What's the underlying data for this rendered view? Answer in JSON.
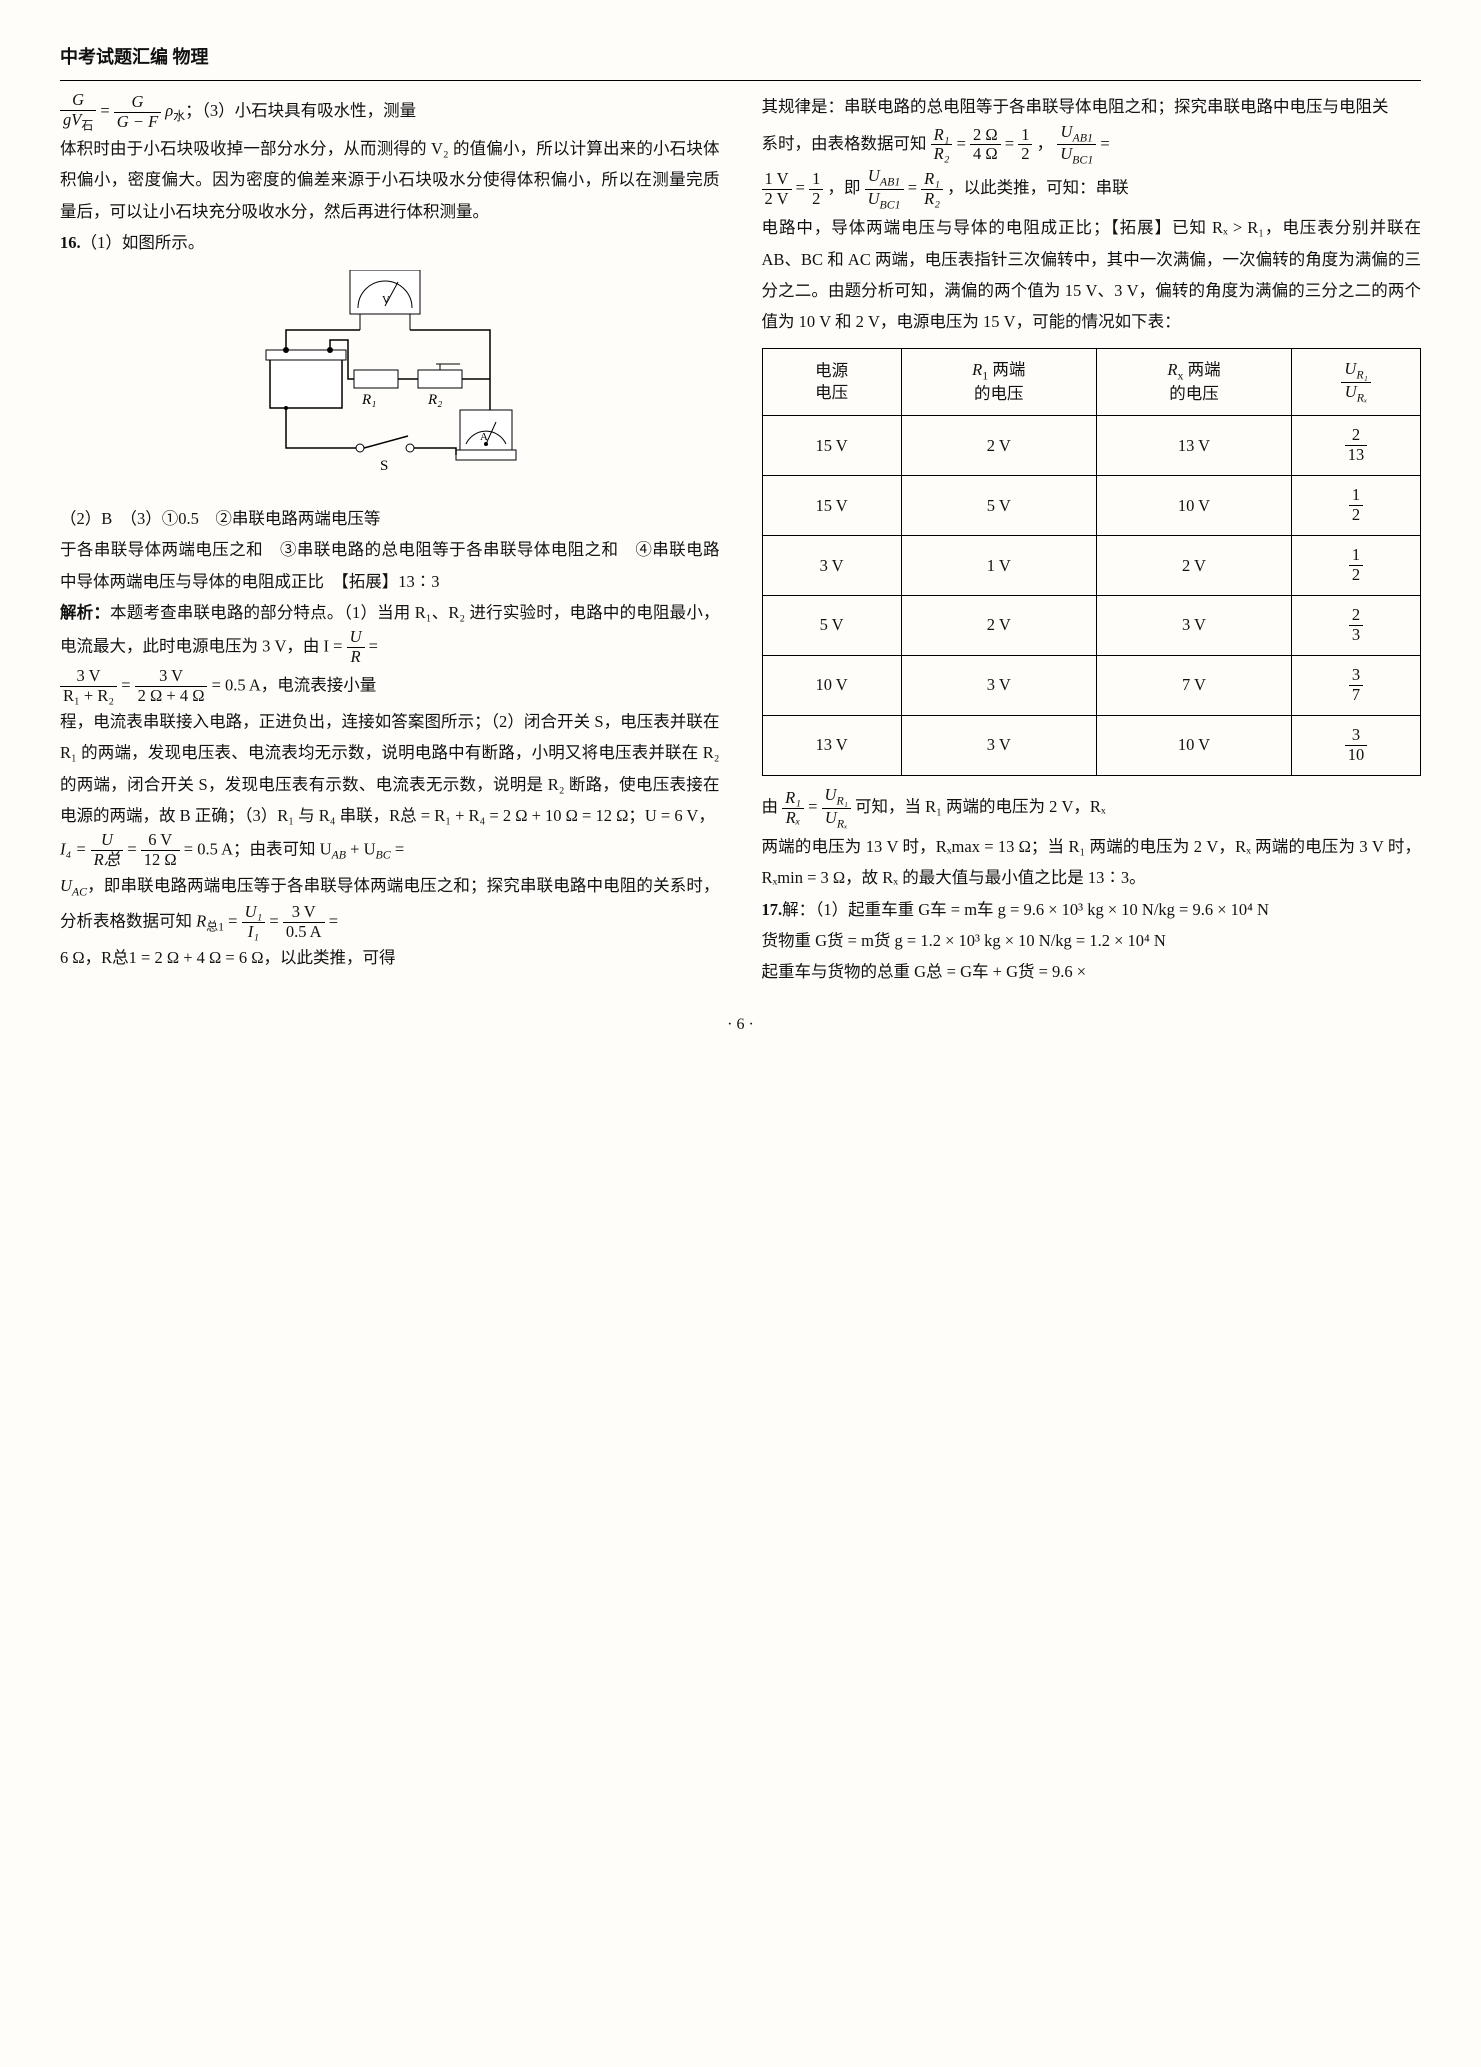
{
  "header": "中考试题汇编  物理",
  "page_number": "· 6 ·",
  "left": {
    "eq_line": {
      "a_num": "G",
      "a_den": "gV",
      "a_den_sub": "石",
      "b_num": "G",
      "b_den": "G − F",
      "rho": "ρ",
      "rho_sub": "水",
      "tail": "；（3）小石块具有吸水性，测量"
    },
    "p1": "体积时由于小石块吸收掉一部分水分，从而测得的 V₂ 的值偏小，所以计算出来的小石块体积偏小，密度偏大。因为密度的偏差来源于小石块吸水分使得体积偏小，所以在测量完质量后，可以让小石块充分吸收水分，然后再进行体积测量。",
    "item16_label": "16.",
    "item16_1": "（1）如图所示。",
    "diagram": {
      "r1": "R₁",
      "r2": "R₂",
      "s": "S",
      "a": "A",
      "v": "V"
    },
    "p2b_line1": "（2）B　（3）①0.5　②串联电路两端电压等",
    "p2b": "于各串联导体两端电压之和　③串联电路的总电阻等于各串联导体电阻之和　④串联电路中导体两端电压与导体的电阻成正比　【拓展】13∶3",
    "analy_label": "解析：",
    "analy1": "本题考查串联电路的部分特点。（1）当用 R₁、R₂ 进行实验时，电路中的电阻最小，电流最大，此时电源电压为 3 V，由 I = ",
    "f_u": "U",
    "f_r": "R",
    "eq2_num": "3 V",
    "eq2_den": "R₁ + R₂",
    "eq2b_num": "3 V",
    "eq2b_den": "2 Ω + 4 Ω",
    "eq2_val": " = 0.5 A，电流表接小量",
    "analy2": "程，电流表串联接入电路，正进负出，连接如答案图所示；（2）闭合开关 S，电压表并联在 R₁ 的两端，发现电压表、电流表均无示数，说明电路中有断路，小明又将电压表并联在 R₂ 的两端，闭合开关 S，发现电压表有示数、电流表无示数，说明是 R₂ 断路，使电压表接在电源的两端，故 B 正确；（3）R₁ 与 R₄ 串联，R总 = R₁ + R₄ = 2 Ω + 10 Ω = 12 Ω；U = 6 V，",
    "i4": "I₄ = ",
    "i4_num": "U",
    "i4_den": "R总",
    "i4b_num": "6 V",
    "i4b_den": "12 Ω",
    "i4_tail": " = 0.5 A；由表可知 U",
    "ab": "AB",
    "plus": " + U",
    "bc": "BC",
    "eq": " =",
    "uac": "U",
    "uac_sub": "AC",
    "analy3": "，即串联电路两端电压等于各串联导体两端电压之和；探究串联电路中电阻的关系时，分析表格数据可知 ",
    "rz1": "R",
    "rz1_sub": "总1",
    "rz1_eq": " = ",
    "rz1_num": "U₁",
    "rz1_den": "I₁",
    "rz1b_num": "3 V",
    "rz1b_den": "0.5 A",
    "rz1_tail": " =",
    "analy4": "6 Ω，R总1 = 2 Ω + 4 Ω = 6 Ω，以此类推，可得"
  },
  "right": {
    "p1": "其规律是：串联电路的总电阻等于各串联导体电阻之和；探究串联电路中电压与电阻关",
    "p1b": "系时，由表格数据可知 ",
    "f1_num": "R₁",
    "f1_den": "R₂",
    "f1_val": " = ",
    "f2_num": "2 Ω",
    "f2_den": "4 Ω",
    "f2_val": " = ",
    "f3_num": "1",
    "f3_den": "2",
    "f3_tail": "，",
    "f4_num": "U",
    "f4_num_sub": "AB1",
    "f4_den": "U",
    "f4_den_sub": "BC1",
    "f4_tail": " =",
    "p2a_num": "1 V",
    "p2a_den": "2 V",
    "p2a_val": " = ",
    "p2b_num": "1",
    "p2b_den": "2",
    "p2b_tail": "，即 ",
    "p2c_num": "U",
    "p2c_num_sub": "AB1",
    "p2c_den": "U",
    "p2c_den_sub": "BC1",
    "p2c_val": " = ",
    "p2d_num": "R₁",
    "p2d_den": "R₂",
    "p2d_tail": "，以此类推，可知：串联",
    "p2": "电路中，导体两端电压与导体的电阻成正比；【拓展】已知 Rₓ > R₁，电压表分别并联在 AB、BC 和 AC 两端，电压表指针三次偏转中，其中一次满偏，一次偏转的角度为满偏的三分之二。由题分析可知，满偏的两个值为 15 V、3 V，偏转的角度为满偏的三分之二的两个值为 10 V 和 2 V，电源电压为 15 V，可能的情况如下表：",
    "table": {
      "headers": [
        "电源\n电压",
        "R₁ 两端\n的电压",
        "Rₓ 两端\n的电压",
        "|U_R₁_over_U_Rx|"
      ],
      "h4_num": "U",
      "h4_num_sub": "R₁",
      "h4_den": "U",
      "h4_den_sub": "Rₓ",
      "rows": [
        [
          "15 V",
          "2 V",
          "13 V",
          "2",
          "13"
        ],
        [
          "15 V",
          "5 V",
          "10 V",
          "1",
          "2"
        ],
        [
          "3 V",
          "1 V",
          "2 V",
          "1",
          "2"
        ],
        [
          "5 V",
          "2 V",
          "3 V",
          "2",
          "3"
        ],
        [
          "10 V",
          "3 V",
          "7 V",
          "3",
          "7"
        ],
        [
          "13 V",
          "3 V",
          "10 V",
          "3",
          "10"
        ]
      ]
    },
    "p3a": "由 ",
    "p3_num": "R₁",
    "p3_den": "Rₓ",
    "p3_eq": " = ",
    "p3b_num": "U",
    "p3b_num_sub": "R₁",
    "p3b_den": "U",
    "p3b_den_sub": "Rₓ",
    "p3b_tail": " 可知，当 R₁ 两端的电压为 2 V，Rₓ",
    "p3": "两端的电压为 13 V 时，Rₓmax = 13 Ω；当 R₁ 两端的电压为 2 V，Rₓ 两端的电压为 3 V 时，Rₓmin = 3 Ω，故 Rₓ 的最大值与最小值之比是 13∶3。",
    "item17_label": "17.",
    "p17": "解：（1）起重车重 G车 = m车 g = 9.6 × 10³ kg × 10 N/kg = 9.6 × 10⁴ N",
    "p17b": "货物重 G货 = m货 g = 1.2 × 10³ kg × 10 N/kg = 1.2 × 10⁴ N",
    "p17c": "起重车与货物的总重 G总 = G车 + G货 = 9.6 ×"
  }
}
